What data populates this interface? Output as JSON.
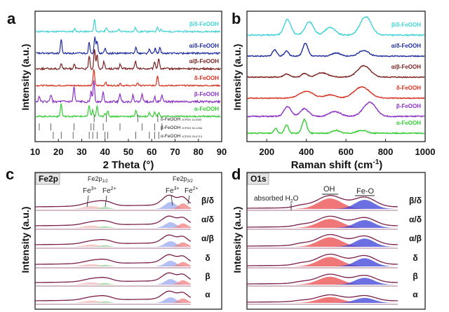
{
  "chart_data": [
    {
      "panel": "a",
      "type": "line",
      "xlabel": "2 Theta (°)",
      "ylabel": "Intensity (a.u.)",
      "xlim": [
        10,
        90
      ],
      "xticks": [
        "10",
        "20",
        "30",
        "40",
        "50",
        "60",
        "70",
        "80",
        "90"
      ],
      "series": [
        {
          "name": "β/δ-FeOOH",
          "color": "#3fd3d6",
          "peaks": [
            [
              35.5,
              1.0
            ],
            [
              40.5,
              0.35
            ],
            [
              53,
              0.3
            ],
            [
              62.5,
              0.4
            ],
            [
              27,
              0.25
            ],
            [
              46,
              0.2
            ],
            [
              64,
              0.2
            ]
          ]
        },
        {
          "name": "α/δ-FeOOH",
          "color": "#1d2c9c",
          "peaks": [
            [
              21.2,
              1.0
            ],
            [
              33.2,
              0.8
            ],
            [
              35.6,
              1.2
            ],
            [
              36.6,
              0.9
            ],
            [
              40,
              0.35
            ],
            [
              53.2,
              0.5
            ],
            [
              59,
              0.3
            ],
            [
              61.5,
              0.35
            ],
            [
              63.5,
              0.4
            ]
          ]
        },
        {
          "name": "α/β-FeOOH",
          "color": "#7a1f1f",
          "peaks": [
            [
              21.2,
              0.35
            ],
            [
              26.8,
              0.35
            ],
            [
              33.2,
              0.8
            ],
            [
              35.5,
              1.3
            ],
            [
              36.6,
              0.9
            ],
            [
              39.5,
              0.5
            ],
            [
              46.5,
              0.3
            ],
            [
              53,
              0.5
            ],
            [
              61.3,
              0.45
            ],
            [
              63,
              0.7
            ]
          ]
        },
        {
          "name": "δ-FeOOH",
          "color": "#d8301f",
          "peaks": [
            [
              35.2,
              1.5
            ],
            [
              40.2,
              0.3
            ],
            [
              62.5,
              0.9
            ],
            [
              46.5,
              0.2
            ],
            [
              54,
              0.25
            ]
          ]
        },
        {
          "name": "β-FeOOH",
          "color": "#8b30c8",
          "peaks": [
            [
              11.8,
              0.35
            ],
            [
              16.8,
              0.45
            ],
            [
              26.7,
              0.9
            ],
            [
              34,
              0.6
            ],
            [
              35.2,
              1.3
            ],
            [
              39.2,
              0.55
            ],
            [
              46.4,
              0.5
            ],
            [
              52,
              0.4
            ],
            [
              55.9,
              0.5
            ],
            [
              61.3,
              0.3
            ],
            [
              64.4,
              0.4
            ]
          ]
        },
        {
          "name": "α-FeOOH",
          "color": "#33cc33",
          "peaks": [
            [
              21.2,
              1.0
            ],
            [
              33.2,
              0.9
            ],
            [
              34.7,
              0.5
            ],
            [
              36.6,
              0.8
            ],
            [
              40,
              0.3
            ],
            [
              41.2,
              0.4
            ],
            [
              53.2,
              0.5
            ],
            [
              59,
              0.3
            ],
            [
              61.3,
              0.35
            ],
            [
              63,
              0.3
            ]
          ]
        }
      ],
      "references": [
        {
          "name": "δ-FeOOH",
          "card": "JCPDS 13-0087",
          "positions": [
            35.3,
            40.5,
            54,
            62.6
          ]
        },
        {
          "name": "β-FeOOH",
          "card": "JCPDS 34-1266",
          "positions": [
            11.8,
            16.8,
            26.7,
            34,
            35.2,
            39.2,
            46.4,
            55.9,
            61.3,
            64.4
          ]
        },
        {
          "name": "α-FeOOH",
          "card": "JCPDS 29-0713",
          "positions": [
            17.8,
            21.2,
            26.3,
            33.2,
            34.7,
            36.6,
            40,
            41.2,
            53.2,
            59,
            61.3,
            63
          ]
        }
      ]
    },
    {
      "panel": "b",
      "type": "line",
      "xlabel": "Raman shift (cm⁻¹)",
      "ylabel": "Intensity (a.u.)",
      "xlim": [
        100,
        1000
      ],
      "xticks": [
        "200",
        "400",
        "600",
        "800",
        "1000"
      ],
      "series": [
        {
          "name": "β/δ-FeOOH",
          "color": "#3fd3d6",
          "peaks": [
            [
              305,
              1.0,
              25
            ],
            [
              415,
              0.85,
              30
            ],
            [
              520,
              0.5,
              35
            ],
            [
              700,
              1.2,
              40
            ]
          ]
        },
        {
          "name": "α/δ-FeOOH",
          "color": "#1d2c9c",
          "peaks": [
            [
              240,
              0.5,
              15
            ],
            [
              300,
              0.4,
              15
            ],
            [
              395,
              1.0,
              18
            ],
            [
              550,
              0.25,
              30
            ],
            [
              690,
              0.45,
              35
            ]
          ]
        },
        {
          "name": "α/β-FeOOH",
          "color": "#7a1f1f",
          "peaks": [
            [
              300,
              0.25,
              20
            ],
            [
              390,
              0.3,
              20
            ],
            [
              480,
              0.35,
              40
            ],
            [
              690,
              0.9,
              45
            ]
          ]
        },
        {
          "name": "δ-FeOOH",
          "color": "#d8301f",
          "peaks": [
            [
              400,
              0.6,
              50
            ],
            [
              520,
              0.3,
              40
            ],
            [
              680,
              1.0,
              55
            ]
          ]
        },
        {
          "name": "β-FeOOH",
          "color": "#8b30c8",
          "peaks": [
            [
              305,
              0.7,
              25
            ],
            [
              390,
              0.55,
              30
            ],
            [
              545,
              0.35,
              40
            ],
            [
              720,
              1.0,
              45
            ]
          ]
        },
        {
          "name": "α-FeOOH",
          "color": "#33cc33",
          "peaks": [
            [
              245,
              0.35,
              12
            ],
            [
              300,
              0.6,
              14
            ],
            [
              390,
              1.0,
              16
            ],
            [
              550,
              0.2,
              25
            ],
            [
              680,
              0.2,
              35
            ]
          ]
        }
      ]
    },
    {
      "panel": "c",
      "type": "line",
      "title": "Fe2p",
      "ylabel": "Intensity (a.u.)",
      "annotations": {
        "fe2p12": "Fe2p",
        "fe2p12_sub": "1/2",
        "fe2p32": "Fe2p",
        "fe2p32_sub": "3/2",
        "fe3": "Fe",
        "fe3_sup": "3+",
        "fe2": "Fe",
        "fe2_sup": "2+"
      },
      "series": [
        {
          "name": "β/δ"
        },
        {
          "name": "α/δ"
        },
        {
          "name": "α/β"
        },
        {
          "name": "δ"
        },
        {
          "name": "β"
        },
        {
          "name": "α"
        }
      ]
    },
    {
      "panel": "d",
      "type": "line",
      "title": "O1s",
      "ylabel": "Intensity (a.u.)",
      "annotations": {
        "absorbed": "absorbed H",
        "absorbed_sub": "2",
        "absorbed_tail": "O",
        "oh": "OH",
        "feo": "Fe-O"
      },
      "series": [
        {
          "name": "β/δ"
        },
        {
          "name": "α/δ"
        },
        {
          "name": "α/β"
        },
        {
          "name": "δ"
        },
        {
          "name": "β"
        },
        {
          "name": "α"
        }
      ]
    }
  ]
}
